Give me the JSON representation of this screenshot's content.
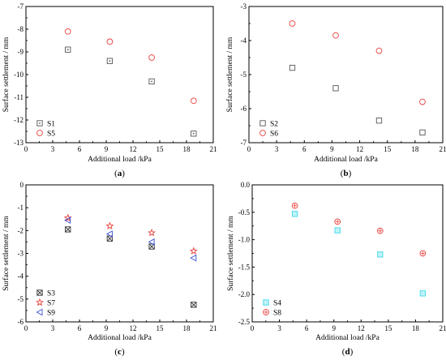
{
  "chart_data": [
    {
      "type": "scatter",
      "panel_label": "a",
      "xlabel": "Additional load /kPa",
      "ylabel": "Surface settlement / mm",
      "xlim": [
        0,
        21
      ],
      "ylim": [
        -13,
        -7
      ],
      "xticks": [
        0,
        3,
        6,
        9,
        12,
        15,
        18,
        21
      ],
      "yticks": [
        -13,
        -12,
        -11,
        -10,
        -9,
        -8,
        -7
      ],
      "legend_position": "bottom-left",
      "series": [
        {
          "name": "S1",
          "marker": "square-dot",
          "color": "#555555",
          "points": [
            [
              4.7,
              -8.9
            ],
            [
              9.4,
              -9.4
            ],
            [
              14.1,
              -10.3
            ],
            [
              18.8,
              -12.6
            ]
          ]
        },
        {
          "name": "S5",
          "marker": "circle",
          "color": "#e8413c",
          "points": [
            [
              4.7,
              -8.1
            ],
            [
              9.4,
              -8.55
            ],
            [
              14.1,
              -9.25
            ],
            [
              18.8,
              -11.15
            ]
          ]
        }
      ]
    },
    {
      "type": "scatter",
      "panel_label": "b",
      "xlabel": "Additional load /kPa",
      "ylabel": "Surface settlement / mm",
      "xlim": [
        0,
        21
      ],
      "ylim": [
        -7,
        -3
      ],
      "xticks": [
        0,
        3,
        6,
        9,
        12,
        15,
        18,
        21
      ],
      "yticks": [
        -7,
        -6,
        -5,
        -4,
        -3
      ],
      "legend_position": "bottom-left",
      "series": [
        {
          "name": "S2",
          "marker": "square",
          "color": "#555555",
          "points": [
            [
              4.7,
              -4.8
            ],
            [
              9.4,
              -5.4
            ],
            [
              14.1,
              -6.35
            ],
            [
              18.8,
              -6.7
            ]
          ]
        },
        {
          "name": "S6",
          "marker": "circle",
          "color": "#e8413c",
          "points": [
            [
              4.7,
              -3.5
            ],
            [
              9.4,
              -3.85
            ],
            [
              14.1,
              -4.3
            ],
            [
              18.8,
              -5.8
            ]
          ]
        }
      ]
    },
    {
      "type": "scatter",
      "panel_label": "c",
      "xlabel": "Additional load /kPa",
      "ylabel": "Surface settlement / mm",
      "xlim": [
        0,
        21
      ],
      "ylim": [
        -6,
        0
      ],
      "xticks": [
        0,
        3,
        6,
        9,
        12,
        15,
        18,
        21
      ],
      "yticks": [
        -6,
        -5,
        -4,
        -3,
        -2,
        -1,
        0
      ],
      "legend_position": "bottom-left",
      "series": [
        {
          "name": "S3",
          "marker": "square-x",
          "color": "#333333",
          "points": [
            [
              4.7,
              -1.95
            ],
            [
              9.4,
              -2.35
            ],
            [
              14.1,
              -2.7
            ],
            [
              18.8,
              -5.25
            ]
          ]
        },
        {
          "name": "S7",
          "marker": "star",
          "color": "#e8413c",
          "points": [
            [
              4.7,
              -1.45
            ],
            [
              9.4,
              -1.8
            ],
            [
              14.1,
              -2.1
            ],
            [
              18.8,
              -2.9
            ]
          ]
        },
        {
          "name": "S9",
          "marker": "triangle-left",
          "color": "#3a4fd6",
          "points": [
            [
              4.7,
              -1.55
            ],
            [
              9.4,
              -2.15
            ],
            [
              14.1,
              -2.5
            ],
            [
              18.8,
              -3.2
            ]
          ]
        }
      ]
    },
    {
      "type": "scatter",
      "panel_label": "d",
      "xlabel": "Additional load /kPa",
      "ylabel": "Surface settlement / mm",
      "xlim": [
        0,
        21
      ],
      "ylim": [
        -2.5,
        0.0
      ],
      "xticks": [
        0,
        3,
        6,
        9,
        12,
        15,
        18,
        21
      ],
      "yticks": [
        -2.5,
        -2.0,
        -1.5,
        -1.0,
        -0.5,
        0.0
      ],
      "ytick_labels": [
        "-2.5",
        "-2.0",
        "-1.5",
        "-1.0",
        "-0.5",
        "0.0"
      ],
      "legend_position": "bottom-left",
      "series": [
        {
          "name": "S4",
          "marker": "square-cyan",
          "color": "#3fd8e8",
          "points": [
            [
              4.7,
              -0.53
            ],
            [
              9.4,
              -0.83
            ],
            [
              14.1,
              -1.27
            ],
            [
              18.8,
              -1.98
            ]
          ]
        },
        {
          "name": "S8",
          "marker": "circle-dot",
          "color": "#e8413c",
          "points": [
            [
              4.7,
              -0.38
            ],
            [
              9.4,
              -0.67
            ],
            [
              14.1,
              -0.84
            ],
            [
              18.8,
              -1.25
            ]
          ]
        }
      ]
    }
  ]
}
